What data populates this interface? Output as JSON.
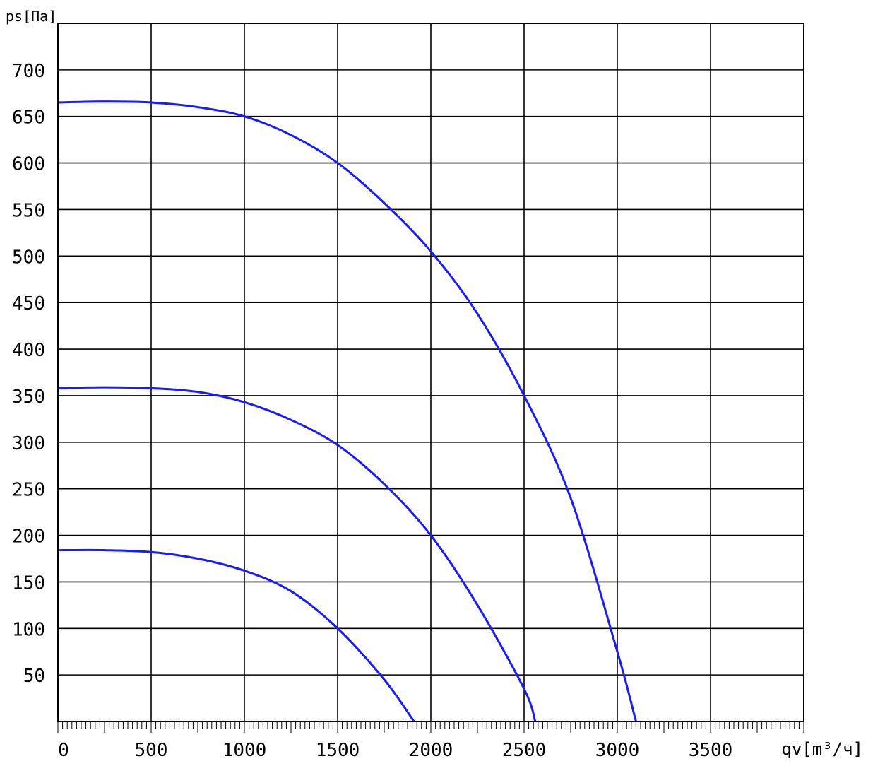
{
  "chart_data": {
    "type": "line",
    "xlabel": "qv[m³/ч]",
    "ylabel": "ps[Па]",
    "xlim": [
      0,
      4000
    ],
    "ylim": [
      0,
      750
    ],
    "x_ticks": [
      0,
      500,
      1000,
      1500,
      2000,
      2500,
      3000,
      3500
    ],
    "x_tick_labels": [
      "0",
      "500",
      "1000",
      "1500",
      "2000",
      "2500",
      "3000",
      "3500"
    ],
    "y_ticks": [
      50,
      100,
      150,
      200,
      250,
      300,
      350,
      400,
      450,
      500,
      550,
      600,
      650,
      700
    ],
    "y_tick_labels": [
      "50",
      "100",
      "150",
      "200",
      "250",
      "300",
      "350",
      "400",
      "450",
      "500",
      "550",
      "600",
      "650",
      "700"
    ],
    "grid": true,
    "colors": {
      "curve": "#1a1aff",
      "grid": "#000000"
    },
    "series": [
      {
        "x": [
          0,
          250,
          500,
          750,
          1000,
          1250,
          1500,
          1750,
          2000,
          2250,
          2500,
          2750,
          3000,
          3100
        ],
        "values": [
          665,
          666,
          665,
          660,
          650,
          630,
          600,
          557,
          505,
          438,
          350,
          240,
          75,
          0
        ]
      },
      {
        "x": [
          0,
          250,
          500,
          750,
          1000,
          1250,
          1500,
          1750,
          2000,
          2250,
          2500,
          2560
        ],
        "values": [
          358,
          359,
          358,
          354,
          343,
          324,
          297,
          255,
          200,
          125,
          35,
          0
        ]
      },
      {
        "x": [
          0,
          250,
          500,
          750,
          1000,
          1250,
          1500,
          1750,
          1910
        ],
        "values": [
          184,
          184,
          182,
          175,
          162,
          140,
          100,
          45,
          0
        ]
      }
    ]
  }
}
